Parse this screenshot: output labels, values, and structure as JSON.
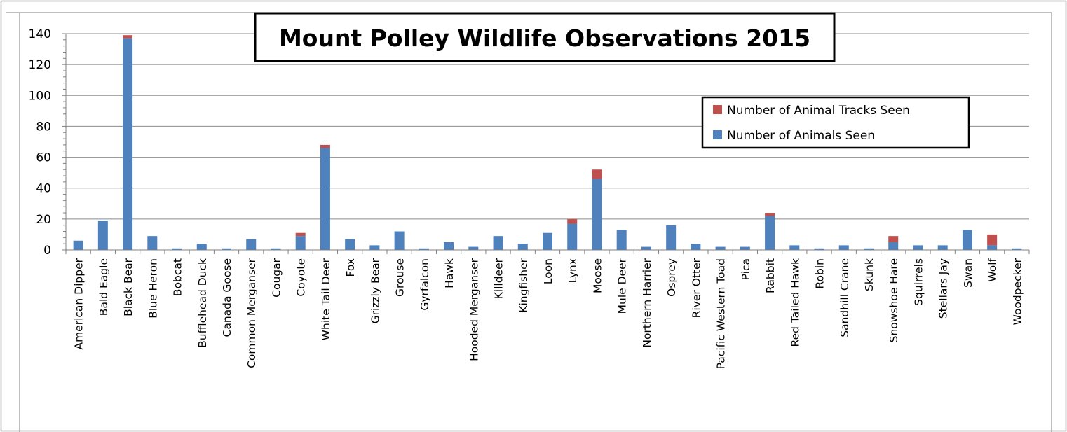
{
  "chart_data": {
    "type": "bar",
    "stacked": true,
    "title": "Mount Polley Wildlife Observations 2015",
    "xlabel": "",
    "ylabel": "",
    "ylim": [
      0,
      140
    ],
    "yticks": [
      "0",
      "20",
      "40",
      "60",
      "80",
      "100",
      "120",
      "140"
    ],
    "grid": true,
    "legend_position": "top-right",
    "categories": [
      "American Dipper",
      "Bald Eagle",
      "Black Bear",
      "Blue Heron",
      "Bobcat",
      "Bufflehead Duck",
      "Canada Goose",
      "Common Merganser",
      "Cougar",
      "Coyote",
      "White Tail Deer",
      "Fox",
      "Grizzly Bear",
      "Grouse",
      "Gyrfalcon",
      "Hawk",
      "Hooded Merganser",
      "Killdeer",
      "Kingfisher",
      "Loon",
      "Lynx",
      "Moose",
      "Mule Deer",
      "Northern Harrier",
      "Osprey",
      "River Otter",
      "Pacific Western Toad",
      "Pica",
      "Rabbit",
      "Red Tailed Hawk",
      "Robin",
      "Sandhill Crane",
      "Skunk",
      "Snowshoe Hare",
      "Squirrels",
      "Stellars Jay",
      "Swan",
      "Wolf",
      "Woodpecker"
    ],
    "series": [
      {
        "name": "Number of Animals Seen",
        "color": "#4f81bd",
        "values": [
          6,
          19,
          137,
          9,
          1,
          4,
          1,
          7,
          1,
          9,
          66,
          7,
          3,
          12,
          1,
          5,
          2,
          9,
          4,
          11,
          17,
          46,
          13,
          2,
          16,
          4,
          2,
          2,
          22,
          3,
          1,
          3,
          1,
          5,
          3,
          3,
          13,
          3,
          1
        ]
      },
      {
        "name": "Number of Animal Tracks Seen",
        "color": "#c0504d",
        "values": [
          0,
          0,
          2,
          0,
          0,
          0,
          0,
          0,
          0,
          2,
          2,
          0,
          0,
          0,
          0,
          0,
          0,
          0,
          0,
          0,
          3,
          6,
          0,
          0,
          0,
          0,
          0,
          0,
          2,
          0,
          0,
          0,
          0,
          4,
          0,
          0,
          0,
          7,
          0
        ]
      }
    ],
    "legend": [
      {
        "label": "Number of Animal Tracks Seen",
        "color": "#c0504d"
      },
      {
        "label": "Number of Animals Seen",
        "color": "#4f81bd"
      }
    ]
  }
}
